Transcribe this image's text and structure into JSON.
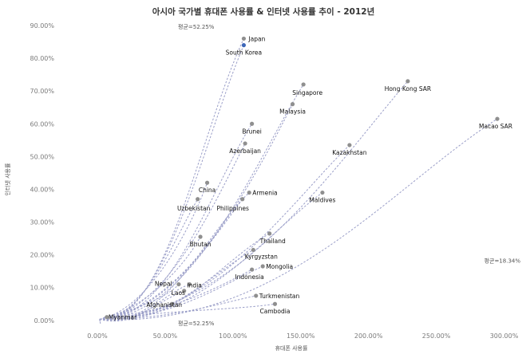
{
  "chart_data": {
    "type": "scatter",
    "title": "아시아 국가별 휴대폰 사용률 & 인터넷 사용률 추이 - 2012년",
    "xlabel": "휴대폰 사용률",
    "ylabel": "인터넷 사용률",
    "xlim": [
      -10,
      305
    ],
    "ylim": [
      -2,
      90
    ],
    "x_ticks": [
      "0.00%",
      "50.00%",
      "100.00%",
      "150.00%",
      "200.00%",
      "250.00%",
      "300.00%"
    ],
    "x_tick_values": [
      0,
      50,
      100,
      150,
      200,
      250,
      300
    ],
    "y_ticks": [
      "0.00%",
      "10.00%",
      "20.00%",
      "30.00%",
      "40.00%",
      "50.00%",
      "60.00%",
      "70.00%",
      "80.00%",
      "90.00%"
    ],
    "y_tick_values": [
      0,
      10,
      20,
      30,
      40,
      50,
      60,
      70,
      80,
      90
    ],
    "grid": false,
    "reference_lines": [
      {
        "axis": "x",
        "value": 52.25,
        "label": "평균=52.25%"
      },
      {
        "axis": "y",
        "value": 18.34,
        "label": "평균=18.34%"
      }
    ],
    "trail_color": "#9a9ec8",
    "point_color": "#8f8f8f",
    "highlight_color": "#3d66b8",
    "points": [
      {
        "name": "Japan",
        "x": 108,
        "y": 86
      },
      {
        "name": "South Korea",
        "x": 108,
        "y": 84,
        "highlight": true
      },
      {
        "name": "Singapore",
        "x": 152,
        "y": 72
      },
      {
        "name": "Hong Kong SAR",
        "x": 229,
        "y": 73
      },
      {
        "name": "Malaysia",
        "x": 144,
        "y": 66
      },
      {
        "name": "Macao SAR",
        "x": 295,
        "y": 61.5
      },
      {
        "name": "Brunei",
        "x": 114,
        "y": 60
      },
      {
        "name": "Kazakhstan",
        "x": 186,
        "y": 53.5
      },
      {
        "name": "Azerbaijan",
        "x": 109,
        "y": 54
      },
      {
        "name": "China",
        "x": 81,
        "y": 42
      },
      {
        "name": "Armenia",
        "x": 112,
        "y": 39
      },
      {
        "name": "Maldives",
        "x": 166,
        "y": 39
      },
      {
        "name": "Uzbekistan",
        "x": 74,
        "y": 37
      },
      {
        "name": "Philippines",
        "x": 107,
        "y": 37
      },
      {
        "name": "Bhutan",
        "x": 76,
        "y": 25.5
      },
      {
        "name": "Thailand",
        "x": 127,
        "y": 26.5
      },
      {
        "name": "Kyrgyzstan",
        "x": 115,
        "y": 21.5
      },
      {
        "name": "Mongolia",
        "x": 122,
        "y": 16.5
      },
      {
        "name": "Indonesia",
        "x": 114,
        "y": 15.5
      },
      {
        "name": "Nepal",
        "x": 60,
        "y": 11
      },
      {
        "name": "India",
        "x": 68,
        "y": 11
      },
      {
        "name": "Laos",
        "x": 64,
        "y": 9
      },
      {
        "name": "Turkmenistan",
        "x": 117,
        "y": 7.5
      },
      {
        "name": "Afghanistan",
        "x": 55,
        "y": 5
      },
      {
        "name": "Cambodia",
        "x": 131,
        "y": 5
      },
      {
        "name": "Myanmar",
        "x": 7,
        "y": 1
      }
    ]
  }
}
